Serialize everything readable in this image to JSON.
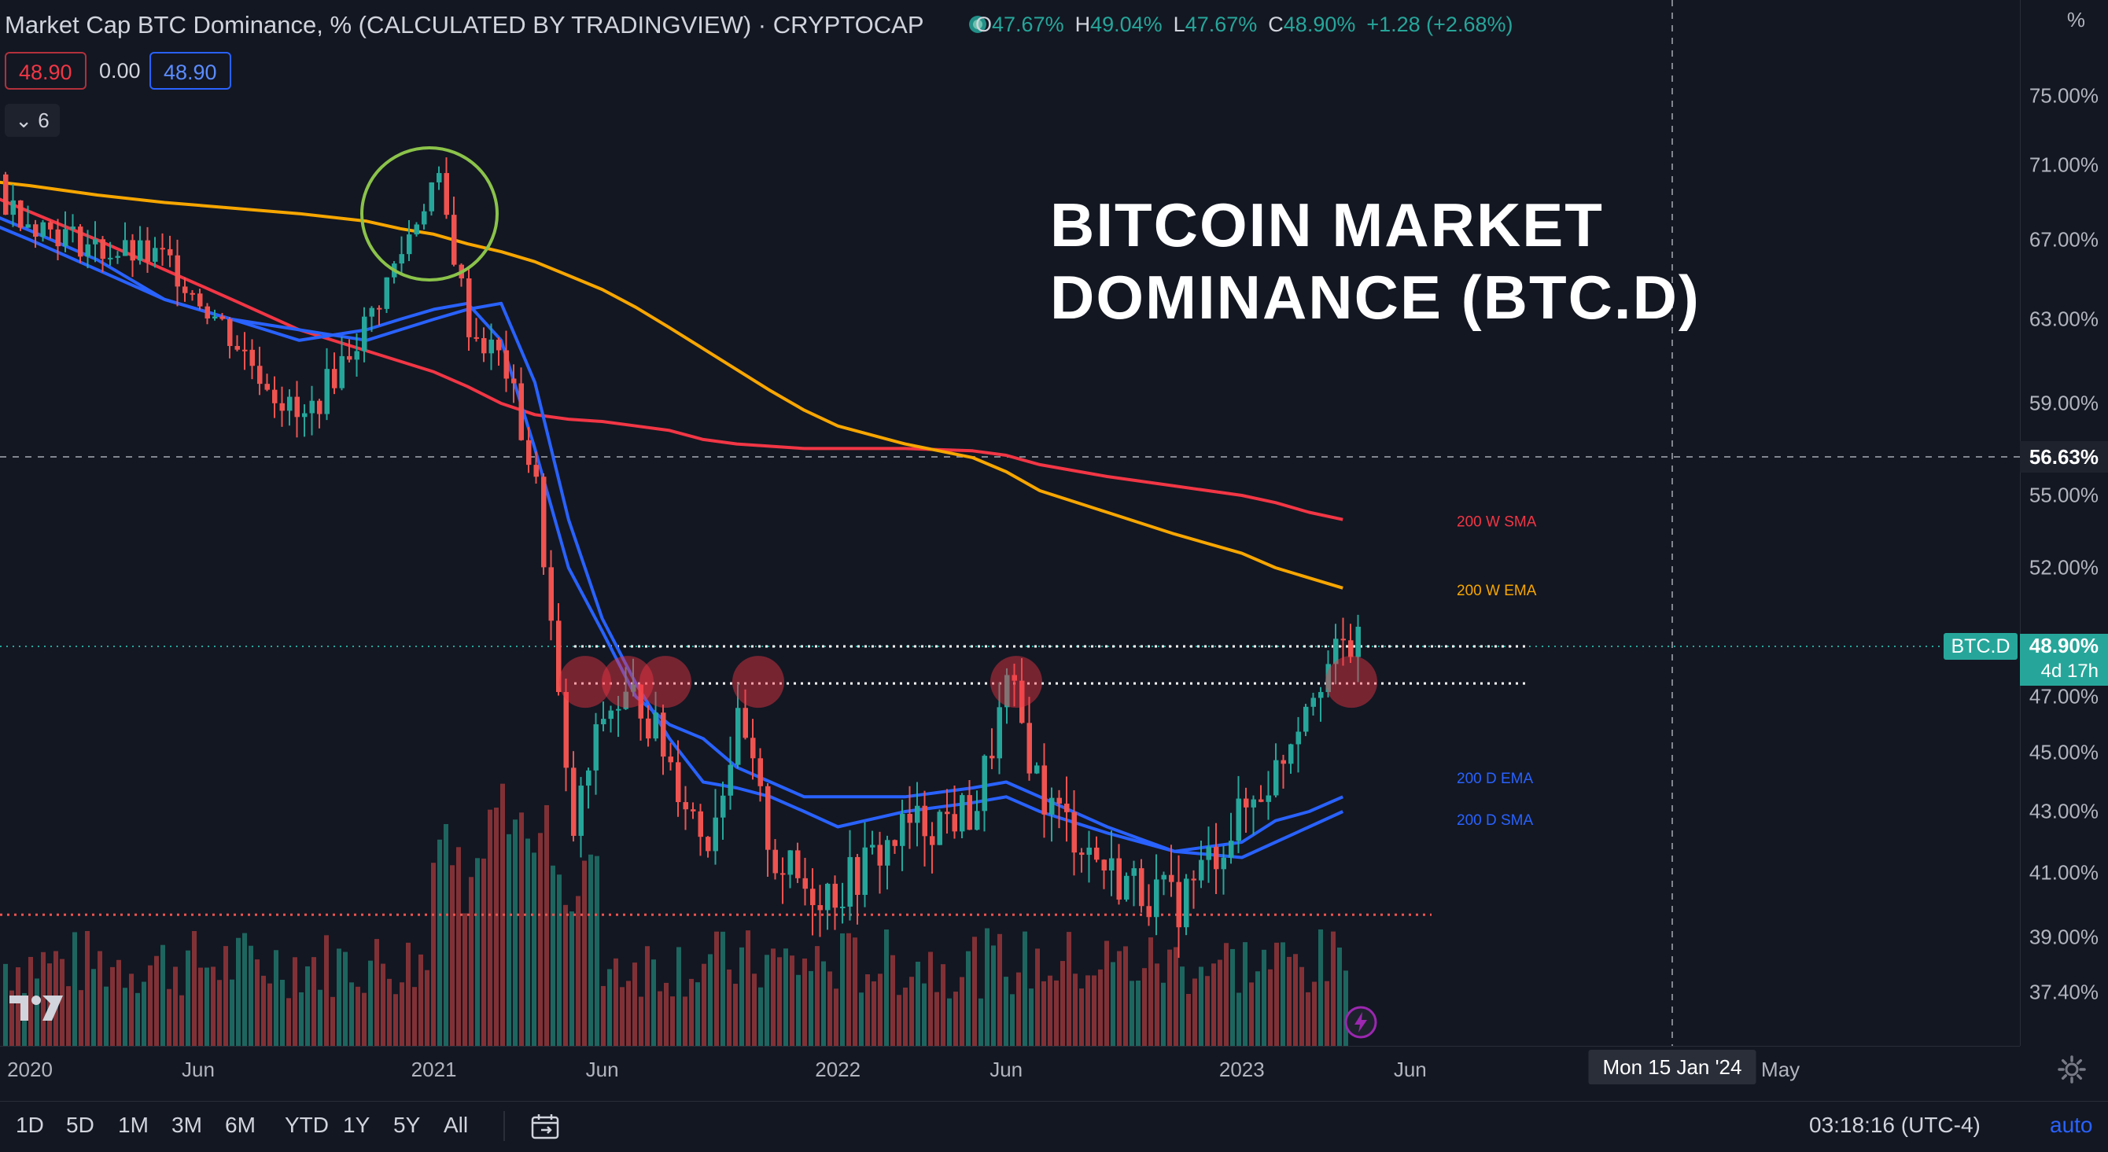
{
  "header": {
    "title": "Market Cap BTC Dominance, % (CALCULATED BY TRADINGVIEW) · CRYPTOCAP",
    "ohlc": [
      {
        "k": "O",
        "v": "47.67%"
      },
      {
        "k": "H",
        "v": "49.04%"
      },
      {
        "k": "L",
        "v": "47.67%"
      },
      {
        "k": "C",
        "v": "48.90%"
      },
      {
        "k": "",
        "v": "+1.28 (+2.68%)"
      }
    ],
    "sell_price": "48.90",
    "spread": "0.00",
    "buy_price": "48.90",
    "indicators_toggle": "6"
  },
  "overlay_title": "BITCOIN MARKET\nDOMINANCE (BTC.D)",
  "price_scale": {
    "unit": "%",
    "labels": [
      "75.00%",
      "71.00%",
      "67.00%",
      "63.00%",
      "59.00%",
      "55.00%",
      "52.00%",
      "47.00%",
      "45.00%",
      "43.00%",
      "41.00%",
      "39.00%",
      "37.40%"
    ],
    "crosshair_value": "56.63%",
    "current_value": "48.90%",
    "current_countdown": "4d 17h",
    "symbol_badge": "BTC.D"
  },
  "time_axis": {
    "labels": [
      "2020",
      "Jun",
      "2021",
      "Jun",
      "2022",
      "Jun",
      "2023",
      "Jun",
      "May"
    ],
    "crosshair_date": "Mon 15 Jan '24"
  },
  "bottom_bar": {
    "ranges": [
      "1D",
      "5D",
      "1M",
      "3M",
      "6M",
      "YTD",
      "1Y",
      "5Y",
      "All"
    ],
    "clock": "03:18:16 (UTC-4)",
    "auto_label": "auto"
  },
  "colors": {
    "background": "#131722",
    "up": "#26a69a",
    "down": "#ef5350",
    "sma200w": "#f23645",
    "ema200w": "#f7a600",
    "ema200d": "#2962ff",
    "sma200d": "#2962ff",
    "highlight_circle": "#f23645",
    "top_circle": "#8bc34a"
  },
  "chart_data": {
    "type": "line",
    "title": "Market Cap BTC Dominance, % (CALCULATED BY TRADINGVIEW) · CRYPTOCAP",
    "xlabel": "",
    "ylabel": "%",
    "ylim": [
      36.5,
      76.5
    ],
    "x": [
      "2019-11",
      "2020-01",
      "2020-03",
      "2020-05",
      "2020-07",
      "2020-09",
      "2020-11",
      "2020-12",
      "2021-01",
      "2021-02",
      "2021-03",
      "2021-04",
      "2021-05",
      "2021-06",
      "2021-07",
      "2021-08",
      "2021-09",
      "2021-10",
      "2021-11",
      "2021-12",
      "2022-01",
      "2022-03",
      "2022-05",
      "2022-06",
      "2022-07",
      "2022-09",
      "2022-11",
      "2023-01",
      "2023-02",
      "2023-03",
      "2023-04"
    ],
    "series": [
      {
        "name": "BTC.D",
        "values": [
          70.5,
          68.0,
          66.5,
          66.0,
          62.0,
          58.0,
          63.0,
          66.5,
          70.5,
          62.5,
          61.0,
          55.0,
          42.0,
          46.5,
          47.0,
          44.5,
          42.0,
          46.0,
          41.5,
          40.5,
          40.5,
          42.5,
          43.0,
          47.5,
          43.5,
          41.0,
          40.0,
          43.0,
          44.5,
          47.5,
          48.9
        ]
      },
      {
        "name": "200 W SMA",
        "values": [
          70.0,
          68.5,
          67.0,
          65.5,
          64.0,
          62.5,
          61.5,
          61.0,
          60.5,
          59.8,
          59.0,
          58.5,
          58.3,
          58.2,
          58.0,
          57.8,
          57.4,
          57.2,
          57.1,
          57.0,
          57.0,
          57.0,
          56.9,
          56.7,
          56.3,
          55.8,
          55.4,
          55.0,
          54.7,
          54.3,
          54.0
        ]
      },
      {
        "name": "200 W EMA",
        "values": [
          70.3,
          69.9,
          69.4,
          69.0,
          68.7,
          68.4,
          68.0,
          67.6,
          67.3,
          66.8,
          66.4,
          65.9,
          65.2,
          64.5,
          63.6,
          62.6,
          61.6,
          60.6,
          59.6,
          58.7,
          58.0,
          57.2,
          56.6,
          56.0,
          55.2,
          54.3,
          53.4,
          52.6,
          52.0,
          51.6,
          51.2
        ]
      },
      {
        "name": "200 D EMA",
        "values": [
          69.0,
          67.5,
          66.0,
          64.0,
          63.0,
          62.0,
          62.5,
          63.0,
          63.5,
          63.8,
          62.0,
          57.0,
          52.0,
          49.5,
          47.0,
          46.0,
          45.5,
          44.5,
          44.0,
          43.5,
          43.5,
          43.5,
          43.8,
          44.0,
          43.5,
          42.5,
          41.7,
          42.0,
          42.7,
          43.0,
          43.5
        ]
      },
      {
        "name": "200 D SMA",
        "values": [
          68.5,
          67.0,
          65.5,
          64.0,
          63.0,
          62.5,
          62.0,
          62.5,
          63.0,
          63.5,
          63.8,
          60.0,
          54.0,
          50.0,
          47.5,
          45.5,
          44.0,
          43.8,
          43.5,
          43.0,
          42.5,
          43.0,
          43.3,
          43.5,
          43.0,
          42.3,
          41.7,
          41.5,
          42.0,
          42.5,
          43.0
        ]
      }
    ],
    "series_labels": [
      "200 W SMA",
      "200 W EMA",
      "200 D EMA",
      "200 D SMA"
    ],
    "resistance_level": 47.5,
    "support_level": 39.7,
    "current_level": 48.9,
    "grid": false
  }
}
